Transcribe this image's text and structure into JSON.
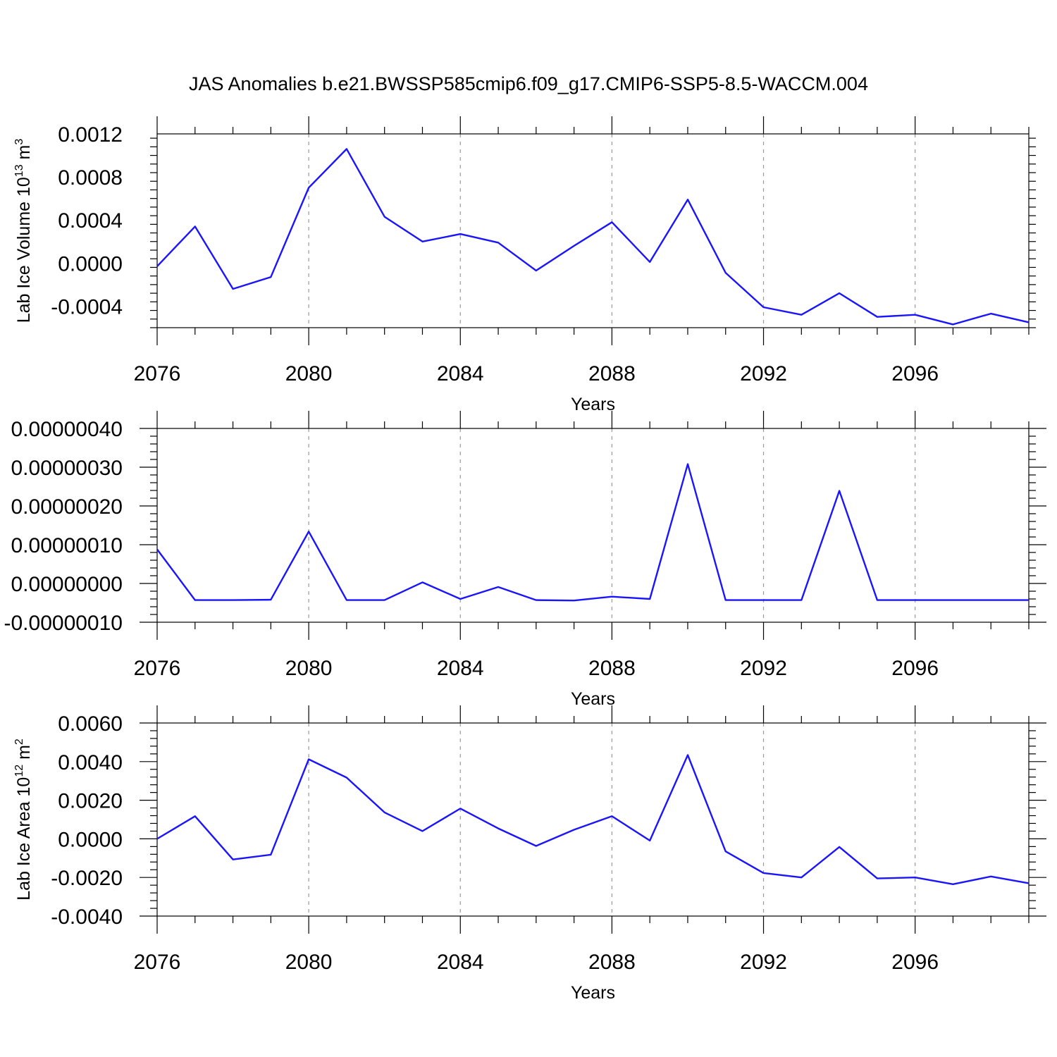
{
  "title": "JAS Anomalies b.e21.BWSSP585cmip6.f09_g17.CMIP6-SSP5-8.5-WACCM.004",
  "colors": {
    "series": "#1a14ff",
    "grid": "#9a9a9a",
    "axis": "#000000"
  },
  "chart_data": [
    {
      "type": "line",
      "ylabel": {
        "text": "Lab Ice Volume 10",
        "exp": "13",
        "unit": " m",
        "unit_exp": "3"
      },
      "xlabel": "Years",
      "xlim": [
        2076,
        2099
      ],
      "ylim": [
        -0.0006,
        0.0012
      ],
      "xticks": [
        2076,
        2080,
        2084,
        2088,
        2092,
        2096
      ],
      "xtick_labels": [
        "2076",
        "2080",
        "2084",
        "2088",
        "2092",
        "2096"
      ],
      "yticks": [
        -0.0004,
        0.0,
        0.0004,
        0.0008,
        0.0012
      ],
      "ytick_labels": [
        "-0.0004",
        "0.0000",
        "0.0004",
        "0.0008",
        "0.0012"
      ],
      "grid": "vertical dashed at major x ticks",
      "x": [
        2076,
        2077,
        2078,
        2079,
        2080,
        2081,
        2082,
        2083,
        2084,
        2085,
        2086,
        2087,
        2088,
        2089,
        2090,
        2091,
        2092,
        2093,
        2094,
        2095,
        2096,
        2097,
        2098,
        2099
      ],
      "series": [
        {
          "values": [
            -3e-05,
            0.00034,
            -0.00024,
            -0.00013,
            0.0007,
            0.00106,
            0.00043,
            0.0002,
            0.00027,
            0.00019,
            -7e-05,
            0.00016,
            0.00038,
            1e-05,
            0.00059,
            -9e-05,
            -0.00041,
            -0.00048,
            -0.00028,
            -0.0005,
            -0.00048,
            -0.00057,
            -0.00047,
            -0.00055
          ]
        }
      ]
    },
    {
      "type": "line",
      "ylabel": null,
      "xlabel": "Years",
      "xlim": [
        2076,
        2099
      ],
      "ylim": [
        -1e-07,
        4e-07
      ],
      "xticks": [
        2076,
        2080,
        2084,
        2088,
        2092,
        2096
      ],
      "xtick_labels": [
        "2076",
        "2080",
        "2084",
        "2088",
        "2092",
        "2096"
      ],
      "yticks": [
        -1e-07,
        0.0,
        1e-07,
        2e-07,
        3e-07,
        4e-07
      ],
      "ytick_labels": [
        "-0.00000010",
        "0.00000000",
        "0.00000010",
        "0.00000020",
        "0.00000030",
        "0.00000040"
      ],
      "grid": "vertical dashed at major x ticks",
      "x": [
        2076,
        2077,
        2078,
        2079,
        2080,
        2081,
        2082,
        2083,
        2084,
        2085,
        2086,
        2087,
        2088,
        2089,
        2090,
        2091,
        2092,
        2093,
        2094,
        2095,
        2096,
        2097,
        2098,
        2099
      ],
      "series": [
        {
          "values": [
            8.8e-08,
            -4.3e-08,
            -4.3e-08,
            -4.2e-08,
            1.34e-07,
            -4.3e-08,
            -4.3e-08,
            3e-09,
            -4e-08,
            -9e-09,
            -4.3e-08,
            -4.4e-08,
            -3.4e-08,
            -4e-08,
            3.08e-07,
            -4.3e-08,
            -4.3e-08,
            -4.3e-08,
            2.39e-07,
            -4.3e-08,
            -4.3e-08,
            -4.3e-08,
            -4.3e-08,
            -4.3e-08
          ]
        }
      ]
    },
    {
      "type": "line",
      "ylabel": {
        "text": "Lab Ice Area 10",
        "exp": "12",
        "unit": " m",
        "unit_exp": "2"
      },
      "xlabel": "Years",
      "xlim": [
        2076,
        2099
      ],
      "ylim": [
        -0.004,
        0.006
      ],
      "xticks": [
        2076,
        2080,
        2084,
        2088,
        2092,
        2096
      ],
      "xtick_labels": [
        "2076",
        "2080",
        "2084",
        "2088",
        "2092",
        "2096"
      ],
      "yticks": [
        -0.004,
        -0.002,
        0.0,
        0.002,
        0.004,
        0.006
      ],
      "ytick_labels": [
        "-0.0040",
        "-0.0020",
        "0.0000",
        "0.0020",
        "0.0040",
        "0.0060"
      ],
      "grid": "vertical dashed at major x ticks",
      "x": [
        2076,
        2077,
        2078,
        2079,
        2080,
        2081,
        2082,
        2083,
        2084,
        2085,
        2086,
        2087,
        2088,
        2089,
        2090,
        2091,
        2092,
        2093,
        2094,
        2095,
        2096,
        2097,
        2098,
        2099
      ],
      "series": [
        {
          "values": [
            0.0,
            0.00117,
            -0.00107,
            -0.00082,
            0.00412,
            0.00317,
            0.00137,
            0.0004,
            0.00157,
            0.00054,
            -0.00037,
            0.00047,
            0.00117,
            -9e-05,
            0.00434,
            -0.00065,
            -0.00177,
            -0.002,
            -0.00042,
            -0.00205,
            -0.002,
            -0.00235,
            -0.00195,
            -0.0023
          ]
        }
      ]
    }
  ]
}
